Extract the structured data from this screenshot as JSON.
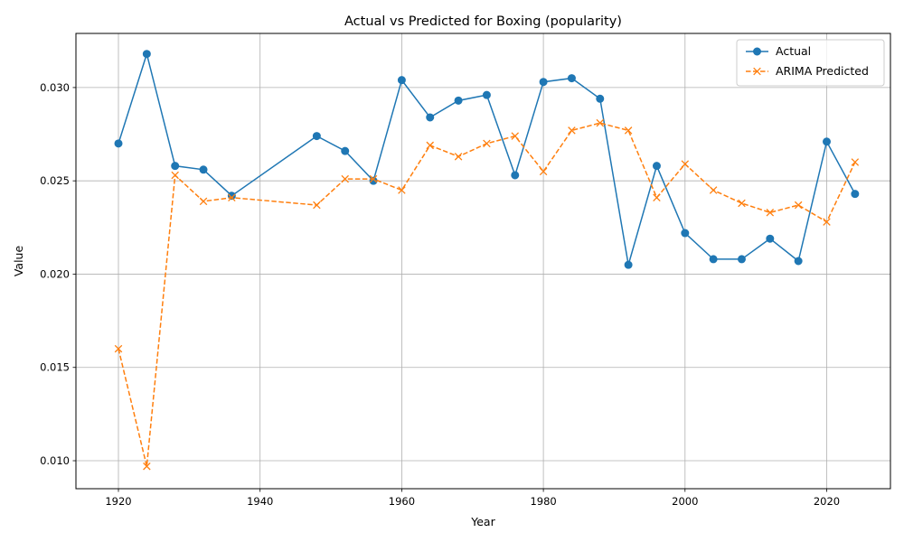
{
  "chart_data": {
    "type": "line",
    "title": "Actual vs Predicted for Boxing (popularity)",
    "xlabel": "Year",
    "ylabel": "Value",
    "xlim": [
      1914,
      2029
    ],
    "ylim": [
      0.0085,
      0.0329
    ],
    "xticks": [
      1920,
      1940,
      1960,
      1980,
      2000,
      2020
    ],
    "yticks": [
      0.01,
      0.015,
      0.02,
      0.025,
      0.03
    ],
    "xtick_labels": [
      "1920",
      "1940",
      "1960",
      "1980",
      "2000",
      "2020"
    ],
    "ytick_labels": [
      "0.010",
      "0.015",
      "0.020",
      "0.025",
      "0.030"
    ],
    "grid": true,
    "legend_position": "top-right",
    "x": [
      1920,
      1924,
      1928,
      1932,
      1936,
      1948,
      1952,
      1956,
      1960,
      1964,
      1968,
      1972,
      1976,
      1980,
      1984,
      1988,
      1992,
      1996,
      2000,
      2004,
      2008,
      2012,
      2016,
      2020,
      2024
    ],
    "series": [
      {
        "name": "Actual",
        "color": "#1f77b4",
        "marker": "circle",
        "linestyle": "solid",
        "values": [
          0.027,
          0.0318,
          0.0258,
          0.0256,
          0.0242,
          0.0274,
          0.0266,
          0.025,
          0.0304,
          0.0284,
          0.0293,
          0.0296,
          0.0253,
          0.0303,
          0.0305,
          0.0294,
          0.0205,
          0.0258,
          0.0222,
          0.0208,
          0.0208,
          0.0219,
          0.0207,
          0.0271,
          0.0243
        ]
      },
      {
        "name": "ARIMA Predicted",
        "color": "#ff7f0e",
        "marker": "x",
        "linestyle": "dashed",
        "values": [
          0.016,
          0.0097,
          0.0253,
          0.0239,
          0.0241,
          0.0237,
          0.0251,
          0.0251,
          0.0245,
          0.0269,
          0.0263,
          0.027,
          0.0274,
          0.0255,
          0.0277,
          0.0281,
          0.0277,
          0.0241,
          0.0259,
          0.0245,
          0.0238,
          0.0233,
          0.0237,
          0.0228,
          0.026
        ]
      }
    ]
  }
}
